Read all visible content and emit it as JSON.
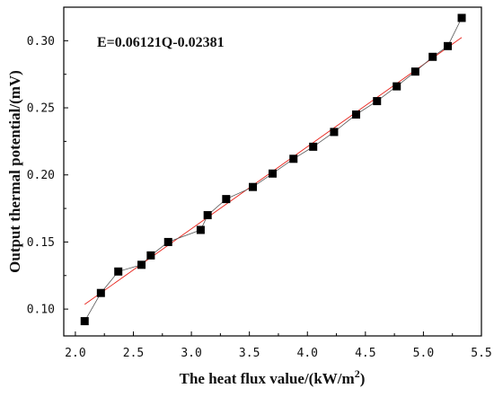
{
  "chart_data": {
    "type": "scatter",
    "title": "",
    "xlabel": "The heat flux value/(kW/m",
    "xlabel_sup": "2",
    "xlabel_suffix": ")",
    "ylabel": "Output thermal potential/(mV)",
    "annotation": "E=0.06121Q-0.02381",
    "xlim": [
      1.9,
      5.5
    ],
    "ylim": [
      0.08,
      0.325
    ],
    "xticks": [
      2.0,
      2.5,
      3.0,
      3.5,
      4.0,
      4.5,
      5.0,
      5.5
    ],
    "xtick_labels": [
      "2.0",
      "2.5",
      "3.0",
      "3.5",
      "4.0",
      "4.5",
      "5.0",
      "5.5"
    ],
    "yticks": [
      0.1,
      0.15,
      0.2,
      0.25,
      0.3
    ],
    "ytick_labels": [
      "0.10",
      "0.15",
      "0.20",
      "0.25",
      "0.30"
    ],
    "grid": false,
    "series": [
      {
        "marker": "square",
        "color": "#000000",
        "line_color": "#555555",
        "x": [
          2.08,
          2.22,
          2.37,
          2.57,
          2.65,
          2.8,
          3.08,
          3.14,
          3.3,
          3.53,
          3.7,
          3.88,
          4.05,
          4.23,
          4.42,
          4.6,
          4.77,
          4.93,
          5.08,
          5.21,
          5.33
        ],
        "y": [
          0.091,
          0.112,
          0.128,
          0.133,
          0.14,
          0.15,
          0.159,
          0.17,
          0.182,
          0.191,
          0.201,
          0.212,
          0.221,
          0.232,
          0.245,
          0.255,
          0.266,
          0.277,
          0.288,
          0.296,
          0.317
        ]
      }
    ],
    "fit": {
      "slope": 0.06121,
      "intercept": -0.02381,
      "x_range": [
        2.08,
        5.33
      ],
      "color": "#e8221a"
    }
  }
}
